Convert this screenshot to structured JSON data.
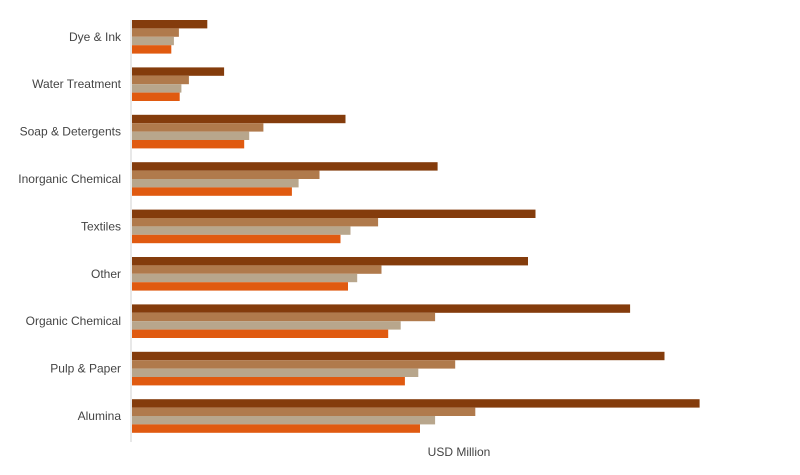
{
  "chart_data": {
    "type": "bar",
    "orientation": "horizontal",
    "title": "",
    "xlabel": "USD Million",
    "ylabel": "",
    "xlim": [
      0,
      860
    ],
    "grid": false,
    "legend": "none",
    "categories": [
      "Dye & Ink",
      "Water Treatment",
      "Soap & Detergents",
      "Inorganic Chemical",
      "Textiles",
      "Other",
      "Organic Chemical",
      "Pulp & Paper",
      "Alumina"
    ],
    "series": [
      {
        "color": "#843c0c",
        "values": [
          90,
          110,
          255,
          365,
          482,
          473,
          595,
          636,
          678
        ]
      },
      {
        "color": "#b07a4c",
        "values": [
          56,
          68,
          157,
          224,
          294,
          298,
          362,
          386,
          410
        ]
      },
      {
        "color": "#b8a68c",
        "values": [
          50,
          59,
          140,
          199,
          261,
          269,
          321,
          342,
          362
        ]
      },
      {
        "color": "#e05a10",
        "values": [
          47,
          57,
          134,
          191,
          249,
          258,
          306,
          326,
          344
        ]
      }
    ]
  }
}
